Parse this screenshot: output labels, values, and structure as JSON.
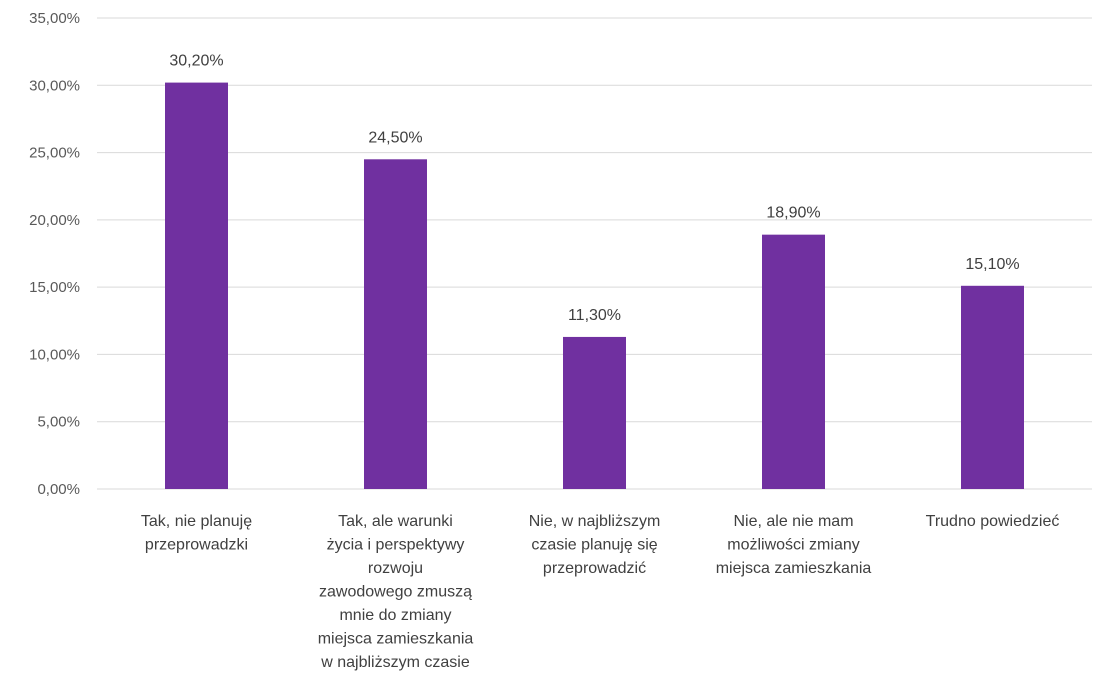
{
  "chart_data": {
    "type": "bar",
    "categories": [
      [
        "Tak,  nie planuję",
        "przeprowadzki"
      ],
      [
        "Tak, ale warunki",
        "życia i perspektywy",
        "rozwoju",
        "zawodowego zmuszą",
        "mnie do zmiany",
        "miejsca zamieszkania",
        "w najbliższym czasie"
      ],
      [
        "Nie, w najbliższym",
        "czasie planuję się",
        "przeprowadzić"
      ],
      [
        "Nie, ale nie mam",
        "możliwości zmiany",
        "miejsca zamieszkania"
      ],
      [
        "Trudno powiedzieć"
      ]
    ],
    "values": [
      30.2,
      24.5,
      11.3,
      18.9,
      15.1
    ],
    "data_labels": [
      "30,20%",
      "24,50%",
      "11,30%",
      "18,90%",
      "15,10%"
    ],
    "y_ticks": [
      "0,00%",
      "5,00%",
      "10,00%",
      "15,00%",
      "20,00%",
      "25,00%",
      "30,00%",
      "35,00%"
    ],
    "ylim": [
      0,
      35
    ],
    "grid": true,
    "bar_color": "#7030a0",
    "title": "",
    "xlabel": "",
    "ylabel": ""
  }
}
